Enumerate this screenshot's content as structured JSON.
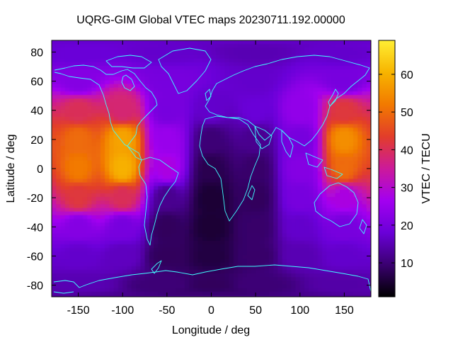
{
  "chart_data": {
    "type": "heatmap",
    "title": "UQRG-GIM Global VTEC maps 20230711.192.00000",
    "xlabel": "Longitude / deg",
    "ylabel": "Latitude / deg",
    "xlim": [
      -180,
      180
    ],
    "ylim": [
      -88,
      88
    ],
    "x_ticks": [
      -150,
      -100,
      -50,
      0,
      50,
      100,
      150
    ],
    "y_ticks": [
      -80,
      -60,
      -40,
      -20,
      0,
      20,
      40,
      60,
      80
    ],
    "colorbar": {
      "label": "VTEC / TECU",
      "range": [
        1,
        69
      ],
      "ticks": [
        10,
        20,
        30,
        40,
        50,
        60
      ],
      "colormap": [
        "#000000",
        "#3a0070",
        "#6a00d8",
        "#a300f0",
        "#cc1a9a",
        "#e23d2a",
        "#f27a00",
        "#f7b400",
        "#ffee33"
      ]
    },
    "overlay": "coastlines",
    "overlay_color": "#40ffff",
    "vtec_field_samples": [
      {
        "lat": 80,
        "lon": -150,
        "vtec": 18
      },
      {
        "lat": 80,
        "lon": -50,
        "vtec": 17
      },
      {
        "lat": 80,
        "lon": 50,
        "vtec": 15
      },
      {
        "lat": 80,
        "lon": 150,
        "vtec": 17
      },
      {
        "lat": 60,
        "lon": -150,
        "vtec": 22
      },
      {
        "lat": 60,
        "lon": -50,
        "vtec": 20
      },
      {
        "lat": 60,
        "lon": 50,
        "vtec": 17
      },
      {
        "lat": 60,
        "lon": 150,
        "vtec": 20
      },
      {
        "lat": 40,
        "lon": -150,
        "vtec": 40
      },
      {
        "lat": 40,
        "lon": -100,
        "vtec": 38
      },
      {
        "lat": 40,
        "lon": -50,
        "vtec": 20
      },
      {
        "lat": 40,
        "lon": 0,
        "vtec": 17
      },
      {
        "lat": 40,
        "lon": 50,
        "vtec": 18
      },
      {
        "lat": 40,
        "lon": 100,
        "vtec": 24
      },
      {
        "lat": 40,
        "lon": 150,
        "vtec": 42
      },
      {
        "lat": 20,
        "lon": -150,
        "vtec": 50
      },
      {
        "lat": 20,
        "lon": -100,
        "vtec": 58
      },
      {
        "lat": 20,
        "lon": -50,
        "vtec": 25
      },
      {
        "lat": 20,
        "lon": 0,
        "vtec": 10
      },
      {
        "lat": 20,
        "lon": 50,
        "vtec": 12
      },
      {
        "lat": 20,
        "lon": 100,
        "vtec": 20
      },
      {
        "lat": 20,
        "lon": 150,
        "vtec": 55
      },
      {
        "lat": 0,
        "lon": -150,
        "vtec": 52
      },
      {
        "lat": 0,
        "lon": -100,
        "vtec": 60
      },
      {
        "lat": 0,
        "lon": -50,
        "vtec": 28
      },
      {
        "lat": 0,
        "lon": 0,
        "vtec": 7
      },
      {
        "lat": 0,
        "lon": 50,
        "vtec": 9
      },
      {
        "lat": 0,
        "lon": 100,
        "vtec": 22
      },
      {
        "lat": 0,
        "lon": 150,
        "vtec": 50
      },
      {
        "lat": -20,
        "lon": -150,
        "vtec": 42
      },
      {
        "lat": -20,
        "lon": -100,
        "vtec": 40
      },
      {
        "lat": -20,
        "lon": -50,
        "vtec": 12
      },
      {
        "lat": -20,
        "lon": 0,
        "vtec": 5
      },
      {
        "lat": -20,
        "lon": 50,
        "vtec": 8
      },
      {
        "lat": -20,
        "lon": 100,
        "vtec": 20
      },
      {
        "lat": -20,
        "lon": 150,
        "vtec": 28
      },
      {
        "lat": -40,
        "lon": -150,
        "vtec": 22
      },
      {
        "lat": -40,
        "lon": -100,
        "vtec": 20
      },
      {
        "lat": -40,
        "lon": -50,
        "vtec": 8
      },
      {
        "lat": -40,
        "lon": 0,
        "vtec": 5
      },
      {
        "lat": -40,
        "lon": 50,
        "vtec": 9
      },
      {
        "lat": -40,
        "lon": 100,
        "vtec": 17
      },
      {
        "lat": -40,
        "lon": 150,
        "vtec": 20
      },
      {
        "lat": -60,
        "lon": -150,
        "vtec": 17
      },
      {
        "lat": -60,
        "lon": -100,
        "vtec": 16
      },
      {
        "lat": -60,
        "lon": -50,
        "vtec": 8
      },
      {
        "lat": -60,
        "lon": 0,
        "vtec": 6
      },
      {
        "lat": -60,
        "lon": 50,
        "vtec": 9
      },
      {
        "lat": -60,
        "lon": 100,
        "vtec": 15
      },
      {
        "lat": -60,
        "lon": 150,
        "vtec": 17
      },
      {
        "lat": -80,
        "lon": -150,
        "vtec": 15
      },
      {
        "lat": -80,
        "lon": -50,
        "vtec": 10
      },
      {
        "lat": -80,
        "lon": 0,
        "vtec": 8
      },
      {
        "lat": -80,
        "lon": 50,
        "vtec": 10
      },
      {
        "lat": -80,
        "lon": 150,
        "vtec": 14
      }
    ]
  }
}
